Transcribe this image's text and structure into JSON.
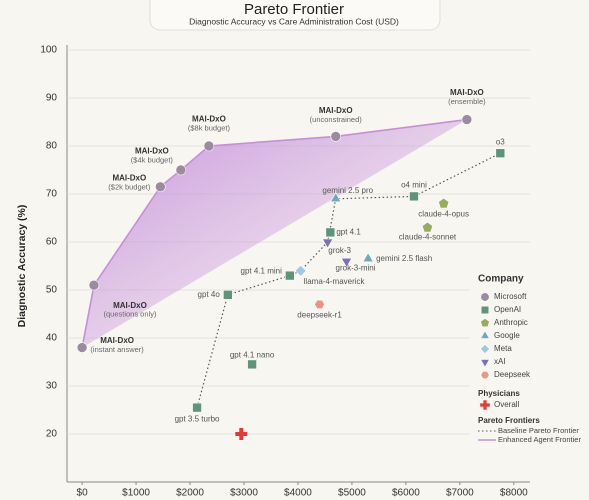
{
  "chart_data": {
    "type": "scatter",
    "title": "Pareto Frontier",
    "subtitle": "Diagnostic Accuracy vs Care Administration Cost (USD)",
    "ylabel": "Diagnostic Accuracy (%)",
    "xlim": [
      -280,
      8300
    ],
    "ylim": [
      10,
      100
    ],
    "xticks": [
      {
        "value": 0,
        "label": "$0"
      },
      {
        "value": 1000,
        "label": "$1000"
      },
      {
        "value": 2000,
        "label": "$2000"
      },
      {
        "value": 3000,
        "label": "$3000"
      },
      {
        "value": 4000,
        "label": "$4000"
      },
      {
        "value": 5000,
        "label": "$5000"
      },
      {
        "value": 6000,
        "label": "$6000"
      },
      {
        "value": 7000,
        "label": "$7000"
      },
      {
        "value": 8000,
        "label": "$8000"
      }
    ],
    "yticks": [
      20,
      30,
      40,
      50,
      60,
      70,
      80,
      90,
      100
    ],
    "grid": true,
    "legend_title": "Company",
    "series": [
      {
        "name": "Microsoft",
        "color": "#9b8aa0",
        "marker": "circle",
        "x": [
          0,
          220,
          1450,
          1830,
          2350,
          4700,
          7130
        ],
        "y": [
          38,
          51,
          71.5,
          75,
          80,
          82,
          85.5
        ],
        "labels": [
          "MAI-DxO",
          "MAI-DxO",
          "MAI-DxO",
          "MAI-DxO",
          "MAI-DxO",
          "MAI-DxO",
          "MAI-DxO"
        ],
        "sublabels": [
          "(instant answer)",
          "(questions only)",
          "($2k budget)",
          "($4k budget)",
          "($8k budget)",
          "(unconstrained)",
          "(ensemble)"
        ]
      },
      {
        "name": "OpenAI",
        "color": "#5e9478",
        "marker": "square",
        "x": [
          2130,
          2700,
          3150,
          3850,
          4600,
          6150,
          7750
        ],
        "y": [
          25.5,
          49,
          34.5,
          53,
          62,
          69.5,
          78.5
        ],
        "labels": [
          "gpt 3.5 turbo",
          "gpt 4o",
          "gpt 4.1 nano",
          "gpt 4.1 mini",
          "gpt 4.1",
          "o4 mini",
          "o3"
        ]
      },
      {
        "name": "Anthropic",
        "color": "#97ad5a",
        "marker": "pentagon",
        "x": [
          6700,
          6400
        ],
        "y": [
          68,
          63
        ],
        "labels": [
          "claude-4-opus",
          "claude-4-sonnet"
        ]
      },
      {
        "name": "Google",
        "color": "#6fa8b8",
        "marker": "triangle",
        "x": [
          4700,
          5300
        ],
        "y": [
          69,
          56.5
        ],
        "labels": [
          "gemini 2.5 pro",
          "gemini 2.5 flash"
        ]
      },
      {
        "name": "Meta",
        "color": "#9fc8e8",
        "marker": "diamond",
        "x": [
          4050
        ],
        "y": [
          54
        ],
        "labels": [
          "llama-4-maverick"
        ]
      },
      {
        "name": "xAI",
        "color": "#7b72b8",
        "marker": "triangle-down",
        "x": [
          4550,
          4900
        ],
        "y": [
          60,
          56
        ],
        "labels": [
          "grok-3",
          "grok-3-mini"
        ]
      },
      {
        "name": "Deepseek",
        "color": "#e8958a",
        "marker": "hexagon",
        "x": [
          4400
        ],
        "y": [
          47
        ],
        "labels": [
          "deepseek-r1"
        ]
      }
    ],
    "physicians": {
      "title": "Physicians",
      "name": "Overall",
      "color": "#e53935",
      "marker": "plus",
      "x": [
        2950
      ],
      "y": [
        20
      ]
    },
    "frontiers": {
      "title": "Pareto Frontiers",
      "baseline": {
        "name": "Baseline Pareto Frontier",
        "color": "#555555",
        "x": [
          2130,
          2700,
          3850,
          4050,
          4550,
          4700,
          6150,
          7750
        ],
        "y": [
          25.5,
          49,
          53,
          54,
          60,
          69,
          69.5,
          78.5
        ]
      },
      "enhanced": {
        "name": "Enhanced Agent Frontier",
        "color": "#c58fd6",
        "x": [
          0,
          220,
          1450,
          1830,
          2350,
          4700,
          7130
        ],
        "y": [
          38,
          51,
          71.5,
          75,
          80,
          82,
          85.5
        ]
      }
    }
  }
}
